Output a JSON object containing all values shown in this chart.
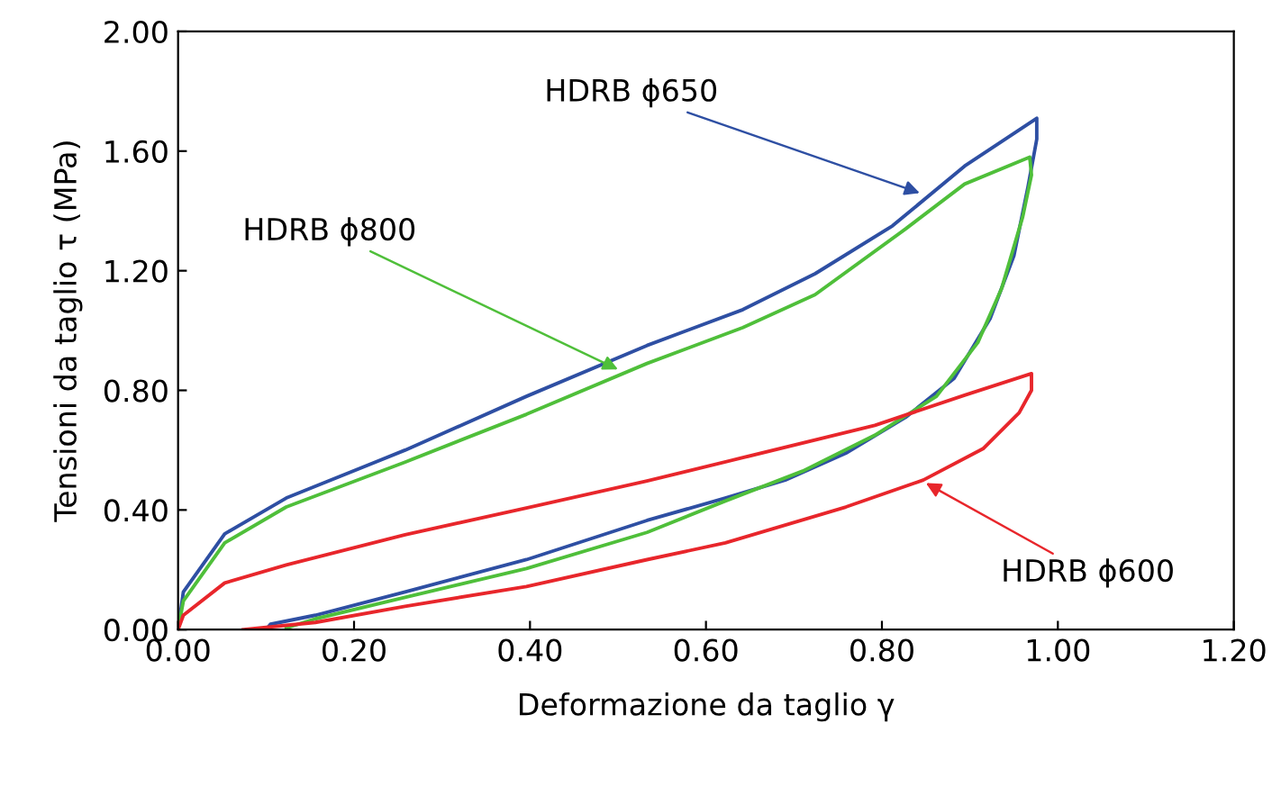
{
  "chart_data": {
    "type": "line",
    "xlabel": "Deformazione da taglio γ",
    "ylabel": "Tensioni da taglio τ (MPa)",
    "xlim": [
      0,
      1.2
    ],
    "ylim": [
      0,
      2
    ],
    "xticks": [
      {
        "value": 0,
        "label": "0.00"
      },
      {
        "value": 0.2,
        "label": "0.20"
      },
      {
        "value": 0.4,
        "label": "0.40"
      },
      {
        "value": 0.6,
        "label": "0.60"
      },
      {
        "value": 0.8,
        "label": "0.80"
      },
      {
        "value": 1.0,
        "label": "1.00"
      },
      {
        "value": 1.2,
        "label": "1.20"
      }
    ],
    "yticks": [
      {
        "value": 0,
        "label": "0.00"
      },
      {
        "value": 0.4,
        "label": "0.40"
      },
      {
        "value": 0.8,
        "label": "0.80"
      },
      {
        "value": 1.2,
        "label": "1.20"
      },
      {
        "value": 1.6,
        "label": "1.60"
      },
      {
        "value": 2.0,
        "label": "2.00"
      }
    ],
    "grid": false,
    "legend": false,
    "marker": "none",
    "line_style": "solid",
    "series": [
      {
        "color": "#2e4fa3",
        "x": [
          0,
          0.006,
          0.053,
          0.123,
          0.258,
          0.396,
          0.533,
          0.642,
          0.724,
          0.812,
          0.894,
          0.976,
          0.976,
          0.966,
          0.95,
          0.923,
          0.882,
          0.827,
          0.759,
          0.69,
          0.622,
          0.533,
          0.396,
          0.258,
          0.156,
          0.105,
          0.1
        ],
        "values": [
          0,
          0.126,
          0.32,
          0.44,
          0.6,
          0.78,
          0.95,
          1.07,
          1.19,
          1.35,
          1.55,
          1.71,
          1.64,
          1.48,
          1.25,
          1.04,
          0.84,
          0.71,
          0.59,
          0.5,
          0.44,
          0.365,
          0.234,
          0.126,
          0.048,
          0.018,
          0
        ]
      },
      {
        "color": "#4fbf3a",
        "x": [
          0,
          0.006,
          0.053,
          0.123,
          0.258,
          0.396,
          0.533,
          0.642,
          0.724,
          0.827,
          0.894,
          0.968,
          0.97,
          0.96,
          0.936,
          0.909,
          0.862,
          0.792,
          0.71,
          0.622,
          0.533,
          0.396,
          0.258,
          0.156,
          0.123
        ],
        "values": [
          0,
          0.096,
          0.29,
          0.41,
          0.56,
          0.72,
          0.89,
          1.01,
          1.12,
          1.34,
          1.49,
          1.58,
          1.52,
          1.38,
          1.14,
          0.96,
          0.78,
          0.65,
          0.53,
          0.43,
          0.325,
          0.204,
          0.108,
          0.036,
          0.006
        ]
      },
      {
        "color": "#e8262b",
        "x": [
          0,
          0.006,
          0.053,
          0.123,
          0.258,
          0.396,
          0.533,
          0.642,
          0.792,
          0.894,
          0.97,
          0.97,
          0.956,
          0.915,
          0.847,
          0.759,
          0.622,
          0.533,
          0.396,
          0.258,
          0.156,
          0.074
        ],
        "values": [
          0,
          0.048,
          0.156,
          0.216,
          0.317,
          0.407,
          0.497,
          0.575,
          0.683,
          0.784,
          0.856,
          0.8,
          0.725,
          0.605,
          0.5,
          0.41,
          0.29,
          0.234,
          0.144,
          0.078,
          0.024,
          0
        ]
      }
    ],
    "annotations": [
      {
        "text": "HDRB ϕ650",
        "x": 0.843,
        "y": 1.46
      },
      {
        "text": "HDRB ϕ800",
        "x": 0.5,
        "y": 0.87
      },
      {
        "text": "HDRB ϕ600",
        "x": 0.85,
        "y": 0.49
      }
    ]
  }
}
